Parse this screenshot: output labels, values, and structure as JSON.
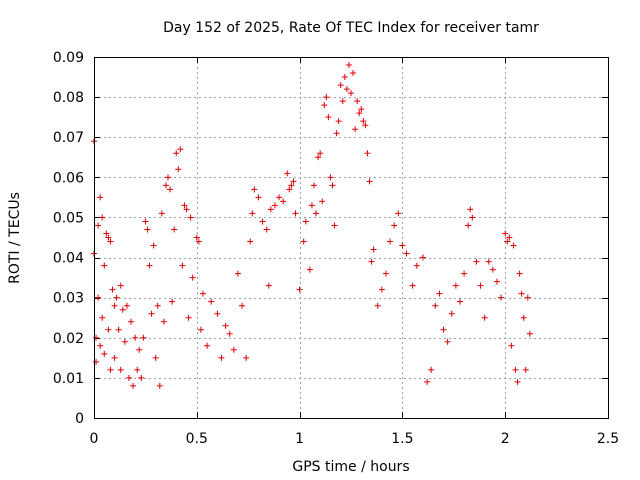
{
  "chart_data": {
    "type": "scatter",
    "title": "Day 152 of 2025, Rate Of TEC Index for receiver tamr",
    "xlabel": "GPS time / hours",
    "ylabel": "ROTI / TECUs",
    "xlim": [
      0,
      2.5
    ],
    "ylim": [
      0,
      0.09
    ],
    "x_ticks": [
      "0",
      "0.5",
      "1",
      "1.5",
      "2",
      "2.5"
    ],
    "y_ticks": [
      "0",
      "0.01",
      "0.02",
      "0.03",
      "0.04",
      "0.05",
      "0.06",
      "0.07",
      "0.08",
      "0.09"
    ],
    "grid": true,
    "marker": "+",
    "color": "#e00000",
    "series": [
      {
        "points": [
          [
            0.0,
            0.069
          ],
          [
            0.0,
            0.041
          ],
          [
            0.01,
            0.02
          ],
          [
            0.01,
            0.014
          ],
          [
            0.02,
            0.03
          ],
          [
            0.02,
            0.048
          ],
          [
            0.03,
            0.055
          ],
          [
            0.03,
            0.018
          ],
          [
            0.04,
            0.05
          ],
          [
            0.04,
            0.025
          ],
          [
            0.05,
            0.038
          ],
          [
            0.05,
            0.016
          ],
          [
            0.06,
            0.046
          ],
          [
            0.07,
            0.045
          ],
          [
            0.07,
            0.022
          ],
          [
            0.08,
            0.044
          ],
          [
            0.08,
            0.012
          ],
          [
            0.09,
            0.032
          ],
          [
            0.1,
            0.028
          ],
          [
            0.1,
            0.015
          ],
          [
            0.11,
            0.03
          ],
          [
            0.12,
            0.022
          ],
          [
            0.13,
            0.033
          ],
          [
            0.13,
            0.012
          ],
          [
            0.14,
            0.027
          ],
          [
            0.15,
            0.019
          ],
          [
            0.16,
            0.028
          ],
          [
            0.17,
            0.01
          ],
          [
            0.18,
            0.024
          ],
          [
            0.19,
            0.008
          ],
          [
            0.2,
            0.02
          ],
          [
            0.21,
            0.012
          ],
          [
            0.22,
            0.017
          ],
          [
            0.23,
            0.01
          ],
          [
            0.24,
            0.02
          ],
          [
            0.25,
            0.049
          ],
          [
            0.26,
            0.047
          ],
          [
            0.27,
            0.038
          ],
          [
            0.28,
            0.026
          ],
          [
            0.29,
            0.043
          ],
          [
            0.3,
            0.015
          ],
          [
            0.31,
            0.028
          ],
          [
            0.32,
            0.008
          ],
          [
            0.33,
            0.051
          ],
          [
            0.34,
            0.024
          ],
          [
            0.35,
            0.058
          ],
          [
            0.36,
            0.06
          ],
          [
            0.37,
            0.057
          ],
          [
            0.38,
            0.029
          ],
          [
            0.39,
            0.047
          ],
          [
            0.4,
            0.066
          ],
          [
            0.41,
            0.062
          ],
          [
            0.42,
            0.067
          ],
          [
            0.43,
            0.038
          ],
          [
            0.44,
            0.053
          ],
          [
            0.45,
            0.052
          ],
          [
            0.46,
            0.025
          ],
          [
            0.47,
            0.05
          ],
          [
            0.48,
            0.035
          ],
          [
            0.5,
            0.045
          ],
          [
            0.51,
            0.044
          ],
          [
            0.52,
            0.022
          ],
          [
            0.53,
            0.031
          ],
          [
            0.55,
            0.018
          ],
          [
            0.57,
            0.029
          ],
          [
            0.6,
            0.026
          ],
          [
            0.62,
            0.015
          ],
          [
            0.64,
            0.023
          ],
          [
            0.66,
            0.021
          ],
          [
            0.68,
            0.017
          ],
          [
            0.7,
            0.036
          ],
          [
            0.72,
            0.028
          ],
          [
            0.74,
            0.015
          ],
          [
            0.76,
            0.044
          ],
          [
            0.77,
            0.051
          ],
          [
            0.78,
            0.057
          ],
          [
            0.8,
            0.055
          ],
          [
            0.82,
            0.049
          ],
          [
            0.84,
            0.047
          ],
          [
            0.85,
            0.033
          ],
          [
            0.86,
            0.052
          ],
          [
            0.88,
            0.053
          ],
          [
            0.9,
            0.055
          ],
          [
            0.92,
            0.054
          ],
          [
            0.94,
            0.061
          ],
          [
            0.95,
            0.057
          ],
          [
            0.96,
            0.058
          ],
          [
            0.97,
            0.059
          ],
          [
            0.98,
            0.051
          ],
          [
            1.0,
            0.032
          ],
          [
            1.02,
            0.044
          ],
          [
            1.03,
            0.049
          ],
          [
            1.05,
            0.037
          ],
          [
            1.06,
            0.053
          ],
          [
            1.07,
            0.058
          ],
          [
            1.08,
            0.051
          ],
          [
            1.09,
            0.065
          ],
          [
            1.1,
            0.066
          ],
          [
            1.11,
            0.054
          ],
          [
            1.12,
            0.078
          ],
          [
            1.13,
            0.08
          ],
          [
            1.14,
            0.075
          ],
          [
            1.15,
            0.06
          ],
          [
            1.16,
            0.058
          ],
          [
            1.17,
            0.048
          ],
          [
            1.18,
            0.071
          ],
          [
            1.19,
            0.074
          ],
          [
            1.2,
            0.083
          ],
          [
            1.21,
            0.079
          ],
          [
            1.22,
            0.085
          ],
          [
            1.23,
            0.082
          ],
          [
            1.24,
            0.088
          ],
          [
            1.25,
            0.081
          ],
          [
            1.26,
            0.086
          ],
          [
            1.27,
            0.072
          ],
          [
            1.28,
            0.079
          ],
          [
            1.29,
            0.076
          ],
          [
            1.3,
            0.077
          ],
          [
            1.31,
            0.074
          ],
          [
            1.32,
            0.073
          ],
          [
            1.33,
            0.066
          ],
          [
            1.34,
            0.059
          ],
          [
            1.35,
            0.039
          ],
          [
            1.36,
            0.042
          ],
          [
            1.38,
            0.028
          ],
          [
            1.4,
            0.032
          ],
          [
            1.42,
            0.036
          ],
          [
            1.44,
            0.044
          ],
          [
            1.46,
            0.048
          ],
          [
            1.48,
            0.051
          ],
          [
            1.5,
            0.043
          ],
          [
            1.52,
            0.041
          ],
          [
            1.55,
            0.033
          ],
          [
            1.57,
            0.038
          ],
          [
            1.6,
            0.04
          ],
          [
            1.62,
            0.009
          ],
          [
            1.64,
            0.012
          ],
          [
            1.66,
            0.028
          ],
          [
            1.68,
            0.031
          ],
          [
            1.7,
            0.022
          ],
          [
            1.72,
            0.019
          ],
          [
            1.74,
            0.026
          ],
          [
            1.76,
            0.033
          ],
          [
            1.78,
            0.029
          ],
          [
            1.8,
            0.036
          ],
          [
            1.82,
            0.048
          ],
          [
            1.83,
            0.052
          ],
          [
            1.84,
            0.05
          ],
          [
            1.86,
            0.039
          ],
          [
            1.88,
            0.033
          ],
          [
            1.9,
            0.025
          ],
          [
            1.92,
            0.039
          ],
          [
            1.94,
            0.037
          ],
          [
            1.96,
            0.034
          ],
          [
            1.98,
            0.03
          ],
          [
            2.0,
            0.046
          ],
          [
            2.01,
            0.044
          ],
          [
            2.02,
            0.045
          ],
          [
            2.03,
            0.018
          ],
          [
            2.04,
            0.043
          ],
          [
            2.05,
            0.012
          ],
          [
            2.06,
            0.009
          ],
          [
            2.07,
            0.036
          ],
          [
            2.08,
            0.031
          ],
          [
            2.09,
            0.025
          ],
          [
            2.1,
            0.012
          ],
          [
            2.11,
            0.03
          ],
          [
            2.12,
            0.021
          ]
        ]
      }
    ]
  }
}
